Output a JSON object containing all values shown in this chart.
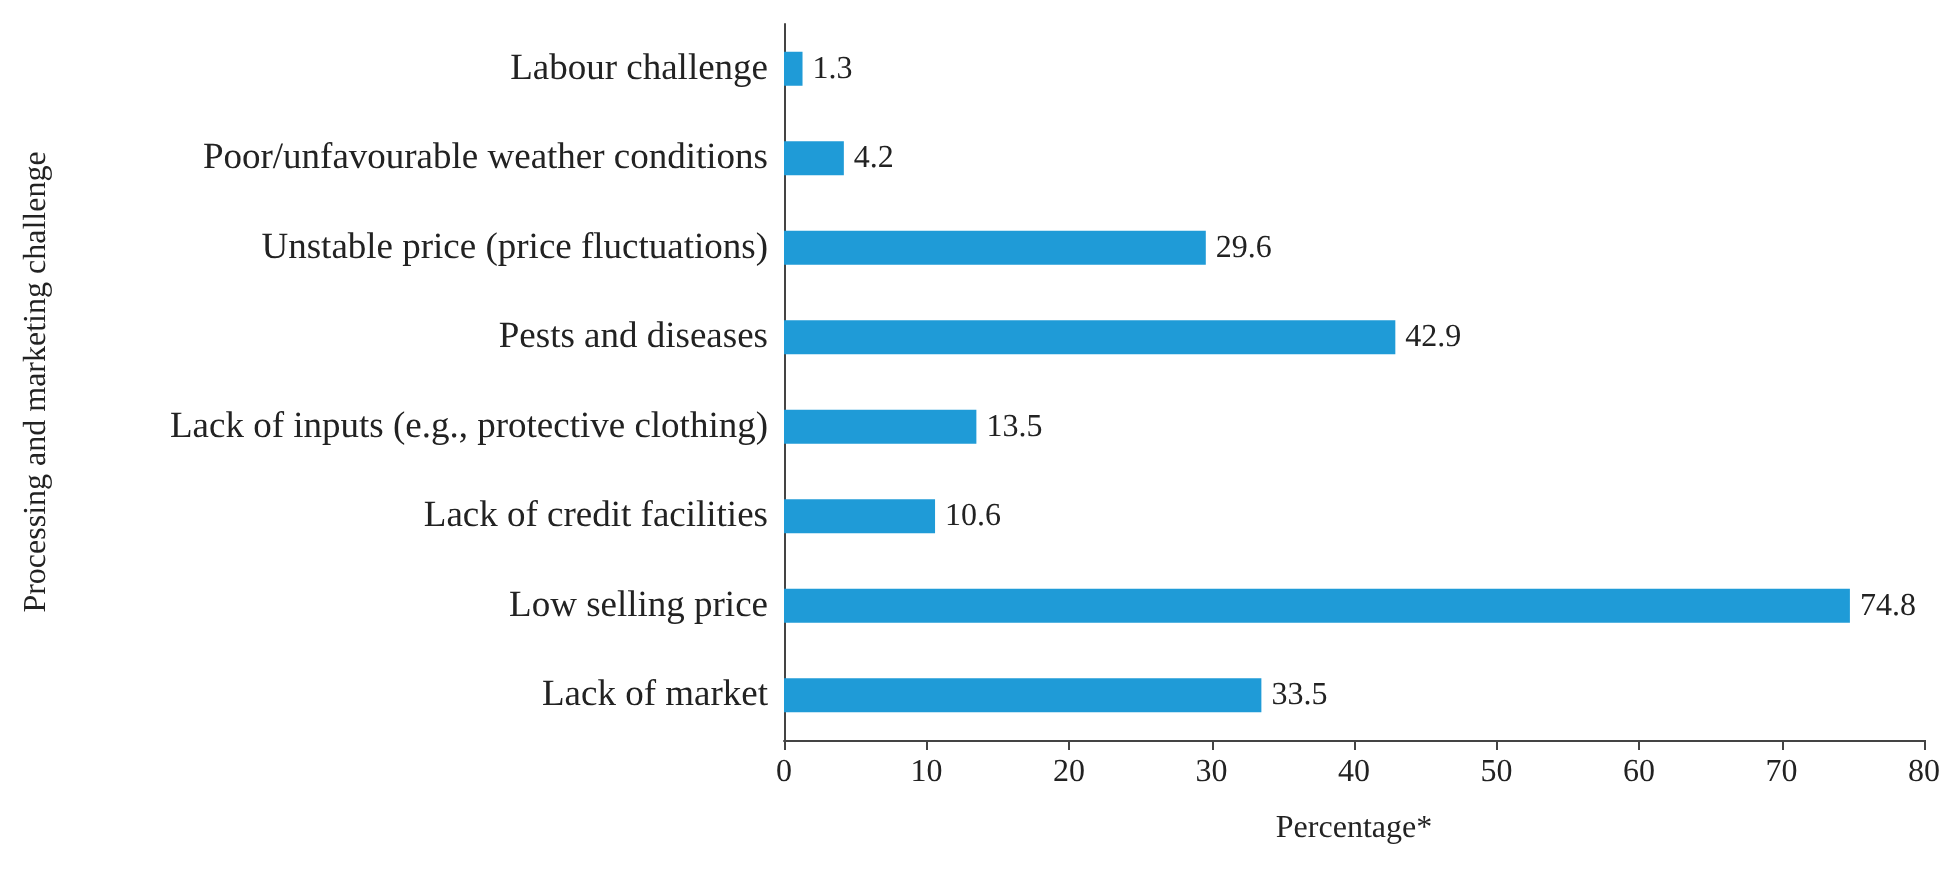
{
  "chart_data": {
    "type": "bar",
    "orientation": "horizontal",
    "xlabel": "Percentage*",
    "ylabel": "Processing and marketing challenge",
    "categories": [
      "Labour challenge",
      "Poor/unfavourable weather conditions",
      "Unstable price (price fluctuations)",
      "Pests and diseases",
      "Lack of inputs (e.g., protective clothing)",
      "Lack of credit facilities",
      "Low selling price",
      "Lack of market"
    ],
    "values": [
      1.3,
      4.2,
      29.6,
      42.9,
      13.5,
      10.6,
      74.8,
      33.5
    ],
    "color": "#1f9bd7",
    "data_labels": true,
    "xlim": [
      0,
      80
    ],
    "xticks": [
      0,
      10,
      20,
      30,
      40,
      50,
      60,
      70,
      80
    ],
    "grid": false
  }
}
